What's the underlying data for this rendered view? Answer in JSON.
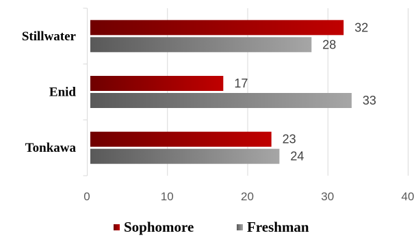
{
  "chart_data": {
    "type": "bar",
    "orientation": "horizontal",
    "categories": [
      "Stillwater",
      "Enid",
      "Tonkawa"
    ],
    "series": [
      {
        "name": "Sophomore",
        "values": [
          32,
          17,
          23
        ],
        "color": "#c00000",
        "color_dark": "#700000"
      },
      {
        "name": "Freshman",
        "values": [
          28,
          33,
          24
        ],
        "color": "#a6a6a6",
        "color_dark": "#595959"
      }
    ],
    "xlim": [
      0,
      40
    ],
    "x_ticks": [
      "0",
      "10",
      "20",
      "30",
      "40"
    ],
    "grid": true,
    "data_labels": true,
    "legend": "bottom-center"
  }
}
